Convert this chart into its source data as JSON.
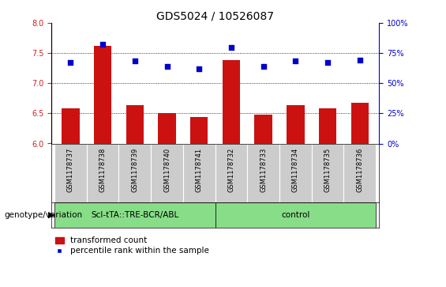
{
  "title": "GDS5024 / 10526087",
  "samples": [
    "GSM1178737",
    "GSM1178738",
    "GSM1178739",
    "GSM1178740",
    "GSM1178741",
    "GSM1178732",
    "GSM1178733",
    "GSM1178734",
    "GSM1178735",
    "GSM1178736"
  ],
  "bar_values": [
    6.58,
    7.62,
    6.63,
    6.5,
    6.44,
    7.38,
    6.48,
    6.63,
    6.59,
    6.68
  ],
  "scatter_values": [
    7.35,
    7.65,
    7.37,
    7.28,
    7.24,
    7.6,
    7.28,
    7.37,
    7.35,
    7.38
  ],
  "ylim_left": [
    6.0,
    8.0
  ],
  "yticks_left": [
    6.0,
    6.5,
    7.0,
    7.5,
    8.0
  ],
  "ylim_right": [
    0,
    100
  ],
  "yticks_right": [
    0,
    25,
    50,
    75,
    100
  ],
  "yticklabels_right": [
    "0%",
    "25%",
    "50%",
    "75%",
    "100%"
  ],
  "bar_color": "#cc1111",
  "scatter_color": "#0000cc",
  "bar_bottom": 6.0,
  "group1_label": "ScI-tTA::TRE-BCR/ABL",
  "group2_label": "control",
  "group1_indices": [
    0,
    1,
    2,
    3,
    4
  ],
  "group2_indices": [
    5,
    6,
    7,
    8,
    9
  ],
  "group_bg_color": "#88dd88",
  "sample_bg_color": "#cccccc",
  "xlabel_left": "genotype/variation",
  "legend_bar_label": "transformed count",
  "legend_scatter_label": "percentile rank within the sample",
  "title_fontsize": 10,
  "tick_fontsize": 7,
  "label_fontsize": 7.5,
  "grid_dotted_at": [
    6.5,
    7.0,
    7.5
  ],
  "left_spine_color": "#cc2222",
  "right_spine_color": "#0000cc"
}
